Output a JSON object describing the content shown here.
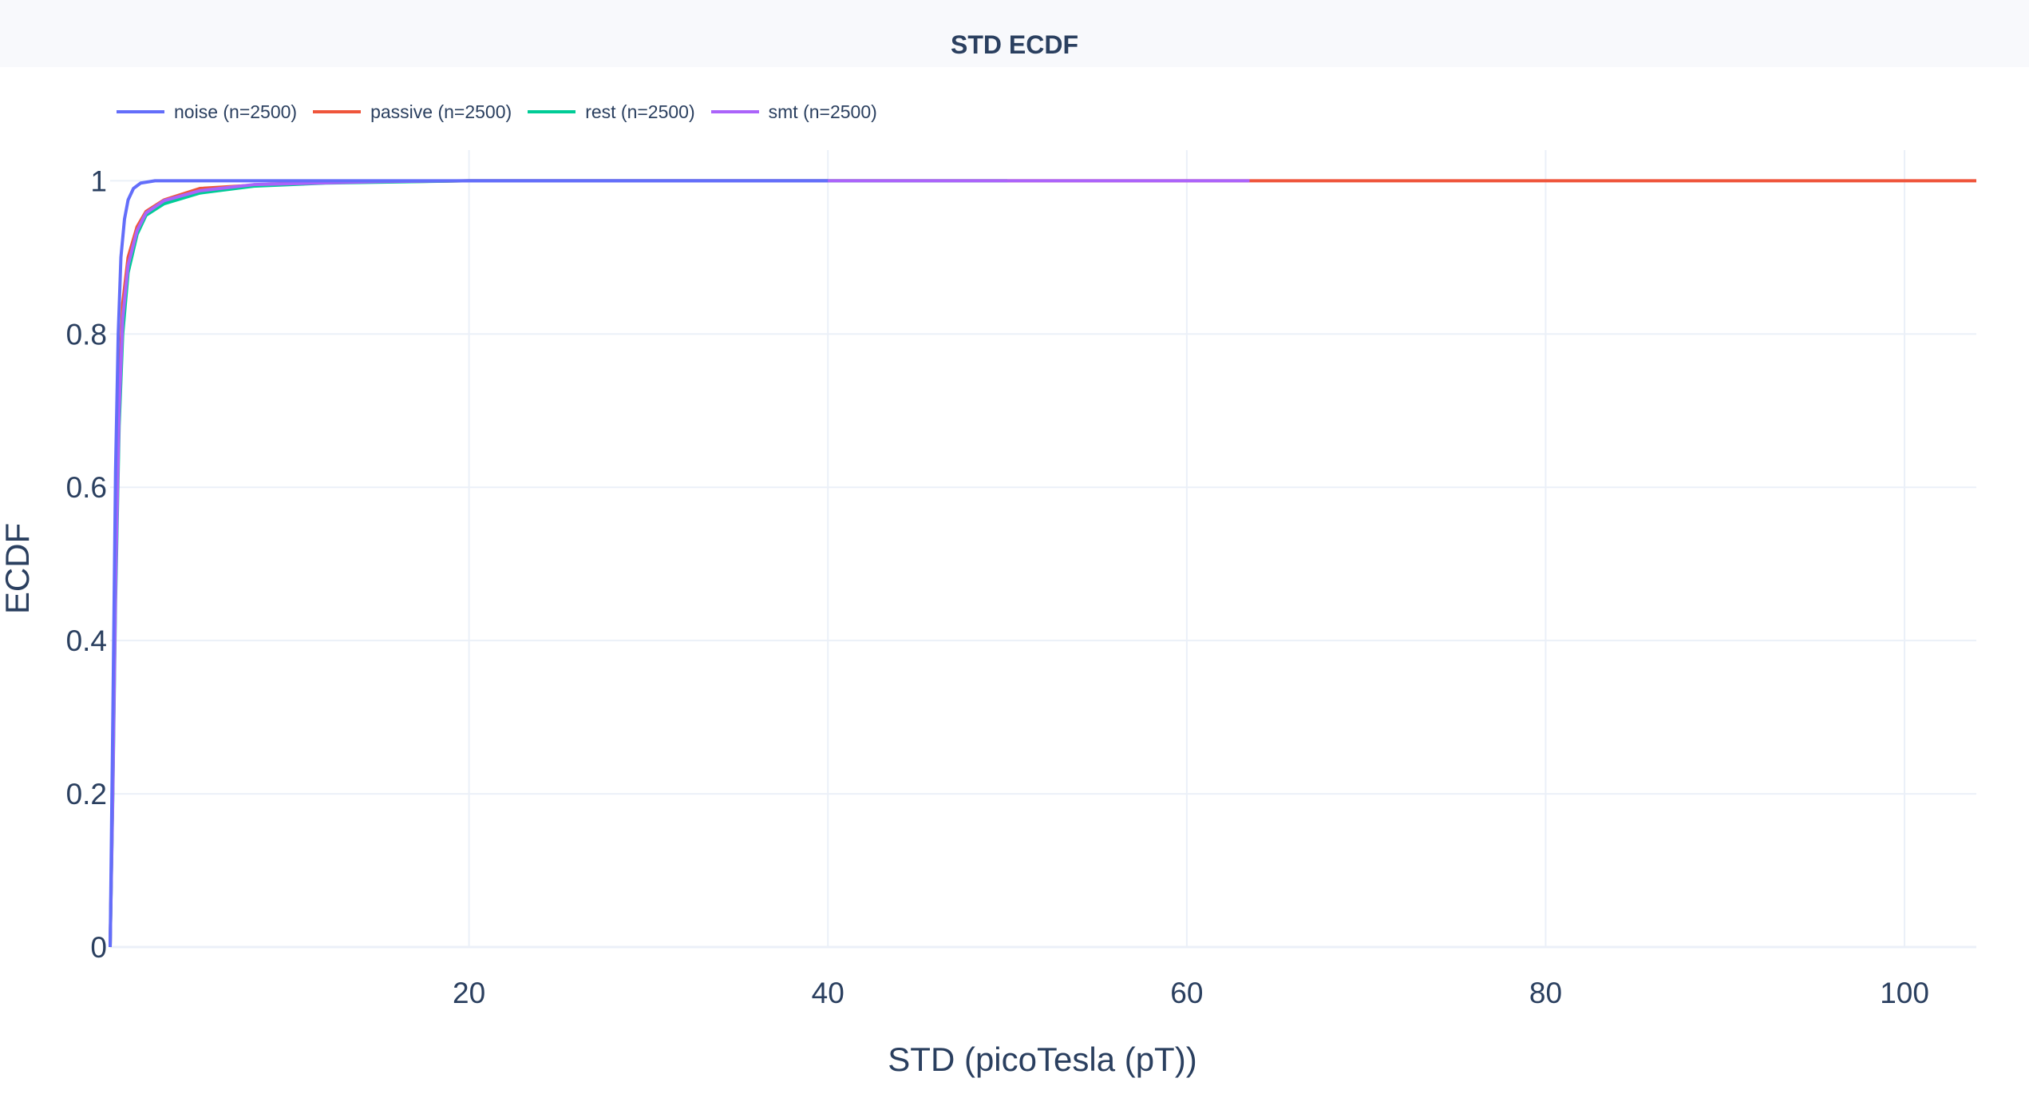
{
  "chart_data": {
    "type": "line",
    "title": "STD ECDF",
    "xlabel": "STD (picoTesla (pT))",
    "ylabel": "ECDF",
    "xlim": [
      0,
      104
    ],
    "ylim": [
      0,
      1.04
    ],
    "x_ticks": [
      "20",
      "40",
      "60",
      "80",
      "100"
    ],
    "y_ticks": [
      "0",
      "0.2",
      "0.4",
      "0.6",
      "0.8",
      "1"
    ],
    "grid": true,
    "legend_position": "top-left",
    "series": [
      {
        "name": "noise (n=2500)",
        "color": "#636efa",
        "points": [
          [
            0.0,
            0.0
          ],
          [
            0.15,
            0.3
          ],
          [
            0.3,
            0.62
          ],
          [
            0.45,
            0.8
          ],
          [
            0.6,
            0.9
          ],
          [
            0.8,
            0.95
          ],
          [
            1.0,
            0.975
          ],
          [
            1.3,
            0.99
          ],
          [
            1.7,
            0.997
          ],
          [
            2.5,
            1.0
          ],
          [
            40.0,
            1.0
          ]
        ]
      },
      {
        "name": "passive (n=2500)",
        "color": "#ef553b",
        "points": [
          [
            0.0,
            0.0
          ],
          [
            0.15,
            0.22
          ],
          [
            0.3,
            0.5
          ],
          [
            0.5,
            0.72
          ],
          [
            0.7,
            0.84
          ],
          [
            1.0,
            0.9
          ],
          [
            1.5,
            0.94
          ],
          [
            2.0,
            0.96
          ],
          [
            3.0,
            0.975
          ],
          [
            5.0,
            0.99
          ],
          [
            10.0,
            0.997
          ],
          [
            20.0,
            1.0
          ],
          [
            104.0,
            1.0
          ]
        ]
      },
      {
        "name": "rest (n=2500)",
        "color": "#00cc96",
        "points": [
          [
            0.0,
            0.0
          ],
          [
            0.15,
            0.2
          ],
          [
            0.3,
            0.45
          ],
          [
            0.5,
            0.68
          ],
          [
            0.7,
            0.8
          ],
          [
            1.0,
            0.88
          ],
          [
            1.5,
            0.93
          ],
          [
            2.0,
            0.955
          ],
          [
            3.0,
            0.97
          ],
          [
            5.0,
            0.984
          ],
          [
            8.0,
            0.993
          ],
          [
            12.0,
            0.997
          ],
          [
            20.0,
            1.0
          ],
          [
            50.0,
            1.0
          ]
        ]
      },
      {
        "name": "smt (n=2500)",
        "color": "#ab63fa",
        "points": [
          [
            0.0,
            0.0
          ],
          [
            0.15,
            0.21
          ],
          [
            0.3,
            0.47
          ],
          [
            0.5,
            0.7
          ],
          [
            0.7,
            0.82
          ],
          [
            1.0,
            0.89
          ],
          [
            1.5,
            0.935
          ],
          [
            2.0,
            0.958
          ],
          [
            3.0,
            0.974
          ],
          [
            5.0,
            0.987
          ],
          [
            8.0,
            0.995
          ],
          [
            15.0,
            0.999
          ],
          [
            20.0,
            1.0
          ],
          [
            63.5,
            1.0
          ]
        ]
      }
    ]
  }
}
